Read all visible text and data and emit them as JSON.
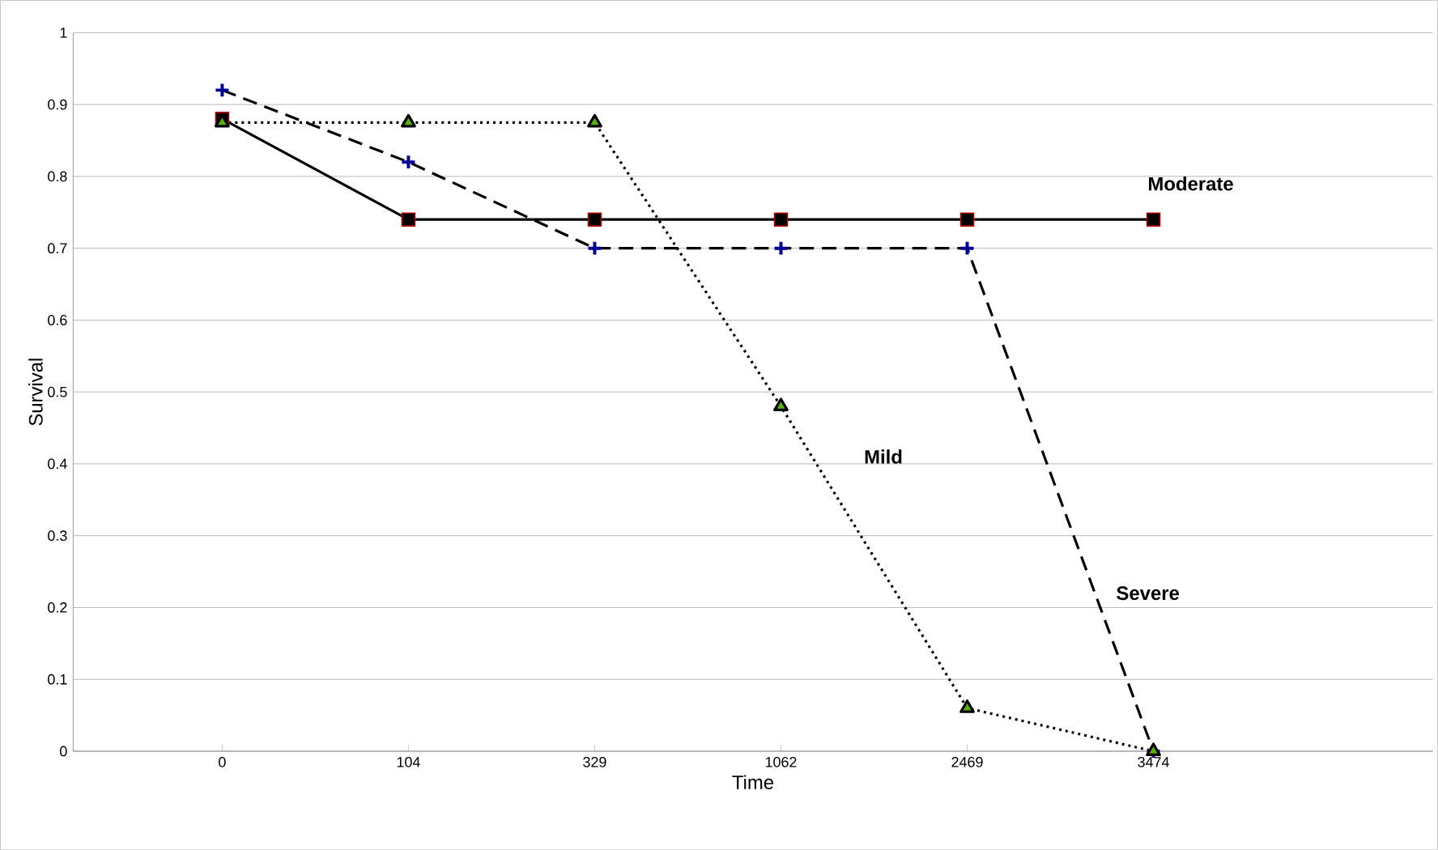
{
  "chart_data": {
    "type": "line",
    "xlabel": "Time",
    "ylabel": "Survival",
    "categories": [
      "0",
      "104",
      "329",
      "1062",
      "2469",
      "3474"
    ],
    "series": [
      {
        "name": "Moderate",
        "color": "#000000",
        "line_style": "solid",
        "marker": "square",
        "values": [
          0.88,
          0.74,
          0.74,
          0.74,
          0.74,
          0.74
        ]
      },
      {
        "name": "Severe",
        "color": "#000000",
        "line_style": "dashed",
        "marker": "cross",
        "values": [
          0.92,
          0.82,
          0.7,
          0.7,
          0.7,
          0
        ]
      },
      {
        "name": "Mild",
        "color": "#000000",
        "line_style": "dotted",
        "marker": "triangle",
        "values": [
          0.875,
          0.875,
          0.875,
          0.48,
          0.06,
          0
        ]
      }
    ],
    "ylim": [
      0,
      1
    ],
    "yticks": [
      0,
      0.1,
      0.2,
      0.3,
      0.4,
      0.5,
      0.6,
      0.7,
      0.8,
      0.9,
      1
    ],
    "grid": "y"
  }
}
